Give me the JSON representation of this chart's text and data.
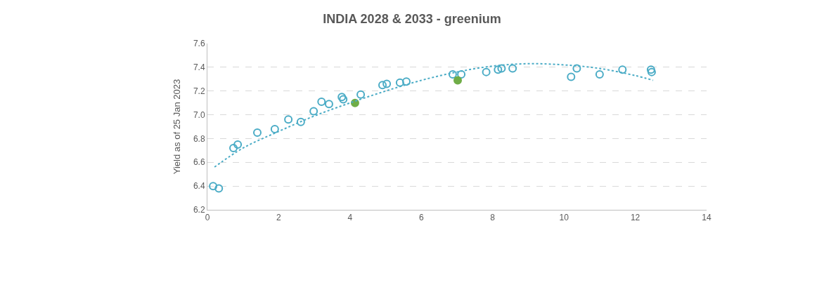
{
  "chart_data": {
    "type": "scatter",
    "title": "INDIA 2028 & 2033 - greenium",
    "ylabel": "Yield as of 25 Jan 2023",
    "xlim": [
      0,
      14
    ],
    "xticks": [
      0,
      2,
      4,
      6,
      8,
      10,
      12,
      14
    ],
    "ylim": [
      6.2,
      7.6
    ],
    "yticks": [
      {
        "value": 6.2,
        "label": "6.2"
      },
      {
        "value": 6.4,
        "label": "6.4"
      },
      {
        "value": 6.6,
        "label": "6.6"
      },
      {
        "value": 6.8,
        "label": "6.8"
      },
      {
        "value": 7.0,
        "label": "7.0"
      },
      {
        "value": 7.2,
        "label": "7.2"
      },
      {
        "value": 7.4,
        "label": "7.4"
      },
      {
        "value": 7.6,
        "label": "7.6"
      }
    ],
    "grid": "y",
    "legend": false,
    "marker": "circle",
    "series": [
      {
        "color": "#4bacc6",
        "x": [
          0.16,
          0.32,
          0.73,
          0.85,
          1.4,
          1.89,
          2.27,
          2.62,
          2.98,
          3.2,
          3.41,
          3.77,
          3.81,
          4.3,
          4.91,
          5.03,
          5.4,
          5.58,
          6.88,
          7.12,
          7.82,
          8.15,
          8.25,
          8.56,
          10.2,
          10.36,
          11.0,
          11.64,
          12.44,
          12.46
        ],
        "values": [
          6.4,
          6.38,
          6.72,
          6.75,
          6.85,
          6.88,
          6.96,
          6.94,
          7.03,
          7.11,
          7.09,
          7.15,
          7.13,
          7.17,
          7.25,
          7.26,
          7.27,
          7.28,
          7.34,
          7.34,
          7.36,
          7.38,
          7.39,
          7.39,
          7.32,
          7.39,
          7.34,
          7.38,
          7.38,
          7.36
        ]
      },
      {
        "color": "#70ad47",
        "x": [
          4.14,
          7.02
        ],
        "values": [
          7.1,
          7.29
        ]
      },
      {
        "type": "line",
        "line_style": "dotted",
        "marker": "none",
        "color": "#4bacc6",
        "x": [
          0.2,
          1,
          2,
          3,
          4,
          5,
          6,
          7,
          8,
          9,
          10,
          11,
          12,
          12.5
        ],
        "values": [
          6.56,
          6.72,
          6.86,
          6.99,
          7.1,
          7.2,
          7.29,
          7.36,
          7.41,
          7.43,
          7.42,
          7.39,
          7.33,
          7.29
        ]
      }
    ]
  }
}
